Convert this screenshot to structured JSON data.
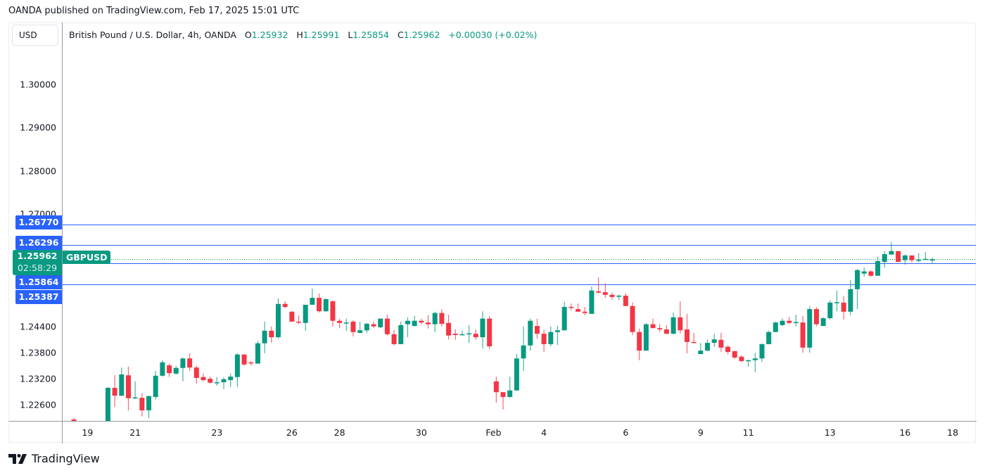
{
  "published": "OANDA published on TradingView.com, Feb 17, 2025 15:01 UTC",
  "currency_button": "USD",
  "legend": {
    "title": "British Pound / U.S. Dollar, 4h, OANDA",
    "o_label": "O",
    "o": "1.25932",
    "h_label": "H",
    "h": "1.25991",
    "l_label": "L",
    "l": "1.25854",
    "c_label": "C",
    "c": "1.25962",
    "change": "+0.00030 (+0.02%)"
  },
  "symbol": "GBPUSD",
  "current_price": "1.25962",
  "countdown": "02:58:29",
  "level_labels": [
    "1.26770",
    "1.26296",
    "1.25864",
    "1.25387"
  ],
  "brand": "TradingView",
  "colors": {
    "up": "#089981",
    "down": "#f23645",
    "level": "#2962ff"
  },
  "chart_data": {
    "type": "candlestick",
    "title": "British Pound / U.S. Dollar, 4h, OANDA",
    "ylabel": "USD",
    "ylim": [
      1.2205,
      1.3145
    ],
    "y_ticks": [
      "1.30000",
      "1.29000",
      "1.28000",
      "1.27000",
      "1.24400",
      "1.23800",
      "1.23200",
      "1.22600"
    ],
    "y_tick_values": [
      1.3,
      1.29,
      1.28,
      1.27,
      1.244,
      1.238,
      1.232,
      1.226
    ],
    "x_ticks": [
      {
        "label": "19",
        "index": 2
      },
      {
        "label": "21",
        "index": 9
      },
      {
        "label": "23",
        "index": 21
      },
      {
        "label": "26",
        "index": 32
      },
      {
        "label": "28",
        "index": 39
      },
      {
        "label": "30",
        "index": 51
      },
      {
        "label": "Feb",
        "index": 61.6
      },
      {
        "label": "4",
        "index": 69
      },
      {
        "label": "6",
        "index": 81
      },
      {
        "label": "9",
        "index": 92
      },
      {
        "label": "11",
        "index": 99
      },
      {
        "label": "13",
        "index": 111
      },
      {
        "label": "16",
        "index": 122
      },
      {
        "label": "18",
        "index": 129
      }
    ],
    "horizontal_levels": [
      1.2677,
      1.26296,
      1.25864,
      1.25387
    ],
    "current_price": 1.25962,
    "candles_ohlc": [
      [
        1.2226,
        1.2229,
        1.2215,
        1.2218
      ],
      [
        1.221,
        1.2222,
        1.22,
        1.2215
      ],
      [
        1.2215,
        1.222,
        1.2195,
        1.22
      ],
      [
        1.22,
        1.2215,
        1.219,
        1.221
      ],
      [
        1.221,
        1.222,
        1.2205,
        1.2212
      ],
      [
        1.2215,
        1.2301,
        1.2205,
        1.2299
      ],
      [
        1.2299,
        1.2328,
        1.2255,
        1.2281
      ],
      [
        1.2281,
        1.2346,
        1.228,
        1.233
      ],
      [
        1.2328,
        1.2348,
        1.2247,
        1.2275
      ],
      [
        1.2276,
        1.2314,
        1.2273,
        1.2277
      ],
      [
        1.2276,
        1.2286,
        1.2233,
        1.2247
      ],
      [
        1.2247,
        1.2281,
        1.2229,
        1.228
      ],
      [
        1.2278,
        1.2338,
        1.2272,
        1.2327
      ],
      [
        1.2327,
        1.2363,
        1.2325,
        1.2358
      ],
      [
        1.2351,
        1.2355,
        1.2324,
        1.2333
      ],
      [
        1.2332,
        1.235,
        1.233,
        1.2345
      ],
      [
        1.2345,
        1.2369,
        1.2314,
        1.2367
      ],
      [
        1.2367,
        1.2379,
        1.2338,
        1.2346
      ],
      [
        1.2346,
        1.235,
        1.2309,
        1.2322
      ],
      [
        1.2324,
        1.2332,
        1.2314,
        1.2317
      ],
      [
        1.232,
        1.2325,
        1.2309,
        1.2311
      ],
      [
        1.2311,
        1.2324,
        1.2304,
        1.2312
      ],
      [
        1.2312,
        1.2324,
        1.2296,
        1.2319
      ],
      [
        1.2317,
        1.2332,
        1.2301,
        1.2325
      ],
      [
        1.2324,
        1.2379,
        1.2301,
        1.2376
      ],
      [
        1.2376,
        1.2377,
        1.235,
        1.2353
      ],
      [
        1.2358,
        1.2361,
        1.2351,
        1.2357
      ],
      [
        1.2355,
        1.2407,
        1.2355,
        1.2402
      ],
      [
        1.2402,
        1.2452,
        1.2379,
        1.2431
      ],
      [
        1.2431,
        1.2441,
        1.2403,
        1.2416
      ],
      [
        1.2416,
        1.2506,
        1.2413,
        1.2493
      ],
      [
        1.2493,
        1.2499,
        1.2483,
        1.2486
      ],
      [
        1.2475,
        1.2476,
        1.2452,
        1.2452
      ],
      [
        1.2452,
        1.2467,
        1.2446,
        1.245
      ],
      [
        1.2449,
        1.2491,
        1.2431,
        1.2491
      ],
      [
        1.2491,
        1.2528,
        1.2491,
        1.2507
      ],
      [
        1.2507,
        1.2517,
        1.2473,
        1.2476
      ],
      [
        1.2476,
        1.2506,
        1.2475,
        1.2504
      ],
      [
        1.2499,
        1.2501,
        1.2441,
        1.2454
      ],
      [
        1.2454,
        1.2459,
        1.2437,
        1.2449
      ],
      [
        1.2449,
        1.2459,
        1.2431,
        1.245
      ],
      [
        1.2452,
        1.2455,
        1.2418,
        1.2428
      ],
      [
        1.2426,
        1.2452,
        1.2426,
        1.2432
      ],
      [
        1.2432,
        1.2449,
        1.2426,
        1.2447
      ],
      [
        1.2446,
        1.2452,
        1.2437,
        1.2441
      ],
      [
        1.2439,
        1.2459,
        1.2437,
        1.2459
      ],
      [
        1.2459,
        1.2468,
        1.242,
        1.2423
      ],
      [
        1.2423,
        1.2433,
        1.2397,
        1.24
      ],
      [
        1.24,
        1.2452,
        1.24,
        1.2444
      ],
      [
        1.2446,
        1.2462,
        1.2416,
        1.2454
      ],
      [
        1.2442,
        1.2465,
        1.2441,
        1.2454
      ],
      [
        1.2454,
        1.2459,
        1.2446,
        1.245
      ],
      [
        1.245,
        1.2467,
        1.2436,
        1.2446
      ],
      [
        1.2446,
        1.2475,
        1.2428,
        1.2472
      ],
      [
        1.2472,
        1.2481,
        1.2441,
        1.2447
      ],
      [
        1.2449,
        1.2468,
        1.2411,
        1.242
      ],
      [
        1.2424,
        1.2434,
        1.241,
        1.2421
      ],
      [
        1.2421,
        1.2431,
        1.242,
        1.2423
      ],
      [
        1.2424,
        1.2444,
        1.2403,
        1.2425
      ],
      [
        1.2424,
        1.2434,
        1.241,
        1.2416
      ],
      [
        1.2416,
        1.2476,
        1.239,
        1.2459
      ],
      [
        1.2459,
        1.2465,
        1.2389,
        1.2395
      ],
      [
        1.2314,
        1.2325,
        1.2265,
        1.2289
      ],
      [
        1.2289,
        1.2289,
        1.2249,
        1.2278
      ],
      [
        1.2278,
        1.2325,
        1.2276,
        1.2293
      ],
      [
        1.2293,
        1.2377,
        1.2293,
        1.2367
      ],
      [
        1.2367,
        1.2441,
        1.2338,
        1.2397
      ],
      [
        1.2397,
        1.2459,
        1.2385,
        1.2454
      ],
      [
        1.2442,
        1.2459,
        1.2413,
        1.2424
      ],
      [
        1.2424,
        1.2433,
        1.2382,
        1.24
      ],
      [
        1.24,
        1.2441,
        1.2395,
        1.2428
      ],
      [
        1.2428,
        1.2442,
        1.2398,
        1.2432
      ],
      [
        1.2432,
        1.2498,
        1.2432,
        1.2486
      ],
      [
        1.2486,
        1.2494,
        1.2478,
        1.2485
      ],
      [
        1.2481,
        1.2494,
        1.2475,
        1.2475
      ],
      [
        1.2475,
        1.2486,
        1.2467,
        1.2472
      ],
      [
        1.247,
        1.2533,
        1.247,
        1.2524
      ],
      [
        1.2522,
        1.2554,
        1.2517,
        1.2519
      ],
      [
        1.252,
        1.2541,
        1.2507,
        1.2514
      ],
      [
        1.2514,
        1.2519,
        1.2502,
        1.2509
      ],
      [
        1.2511,
        1.2514,
        1.2502,
        1.2512
      ],
      [
        1.2512,
        1.2517,
        1.2488,
        1.2488
      ],
      [
        1.2488,
        1.2496,
        1.2421,
        1.2428
      ],
      [
        1.2428,
        1.2436,
        1.2363,
        1.2385
      ],
      [
        1.2385,
        1.2449,
        1.2385,
        1.2446
      ],
      [
        1.2446,
        1.2459,
        1.2437,
        1.2437
      ],
      [
        1.2437,
        1.2447,
        1.2428,
        1.2434
      ],
      [
        1.2434,
        1.2444,
        1.2423,
        1.2424
      ],
      [
        1.2424,
        1.2473,
        1.2423,
        1.2462
      ],
      [
        1.2462,
        1.2499,
        1.2424,
        1.2432
      ],
      [
        1.2434,
        1.247,
        1.2379,
        1.2405
      ],
      [
        1.2405,
        1.2426,
        1.2402,
        1.2403
      ],
      [
        1.2377,
        1.2403,
        1.2377,
        1.2385
      ],
      [
        1.2385,
        1.2411,
        1.2384,
        1.2403
      ],
      [
        1.2403,
        1.2424,
        1.2394,
        1.2411
      ],
      [
        1.241,
        1.2426,
        1.2382,
        1.2392
      ],
      [
        1.2394,
        1.2397,
        1.2376,
        1.2382
      ],
      [
        1.2384,
        1.2384,
        1.2366,
        1.2369
      ],
      [
        1.2371,
        1.2374,
        1.2358,
        1.2361
      ],
      [
        1.2361,
        1.2364,
        1.2348,
        1.2363
      ],
      [
        1.2363,
        1.238,
        1.2335,
        1.2367
      ],
      [
        1.2367,
        1.2402,
        1.2359,
        1.24
      ],
      [
        1.24,
        1.2431,
        1.24,
        1.2428
      ],
      [
        1.2428,
        1.2452,
        1.2428,
        1.245
      ],
      [
        1.2444,
        1.2459,
        1.2442,
        1.2454
      ],
      [
        1.2454,
        1.2463,
        1.2446,
        1.2449
      ],
      [
        1.245,
        1.2468,
        1.2441,
        1.2451
      ],
      [
        1.245,
        1.2465,
        1.238,
        1.2392
      ],
      [
        1.2392,
        1.2488,
        1.238,
        1.2481
      ],
      [
        1.2481,
        1.2485,
        1.2441,
        1.2446
      ],
      [
        1.2442,
        1.2462,
        1.2442,
        1.246
      ],
      [
        1.246,
        1.2501,
        1.2457,
        1.2496
      ],
      [
        1.2496,
        1.2524,
        1.2476,
        1.2497
      ],
      [
        1.2496,
        1.2511,
        1.2457,
        1.2475
      ],
      [
        1.2475,
        1.2548,
        1.2467,
        1.2527
      ],
      [
        1.2527,
        1.2574,
        1.2481,
        1.2571
      ],
      [
        1.2563,
        1.2577,
        1.2556,
        1.2568
      ],
      [
        1.2568,
        1.2571,
        1.2556,
        1.2558
      ],
      [
        1.2558,
        1.2602,
        1.2558,
        1.2592
      ],
      [
        1.259,
        1.2615,
        1.2577,
        1.2608
      ],
      [
        1.2607,
        1.2636,
        1.2607,
        1.2615
      ],
      [
        1.2615,
        1.2615,
        1.259,
        1.259
      ],
      [
        1.2594,
        1.2607,
        1.2584,
        1.2605
      ],
      [
        1.2605,
        1.2605,
        1.2589,
        1.2594
      ],
      [
        1.2594,
        1.261,
        1.2589,
        1.2595
      ],
      [
        1.2595,
        1.2613,
        1.2594,
        1.2597
      ],
      [
        1.25932,
        1.25991,
        1.25854,
        1.25962
      ]
    ]
  }
}
